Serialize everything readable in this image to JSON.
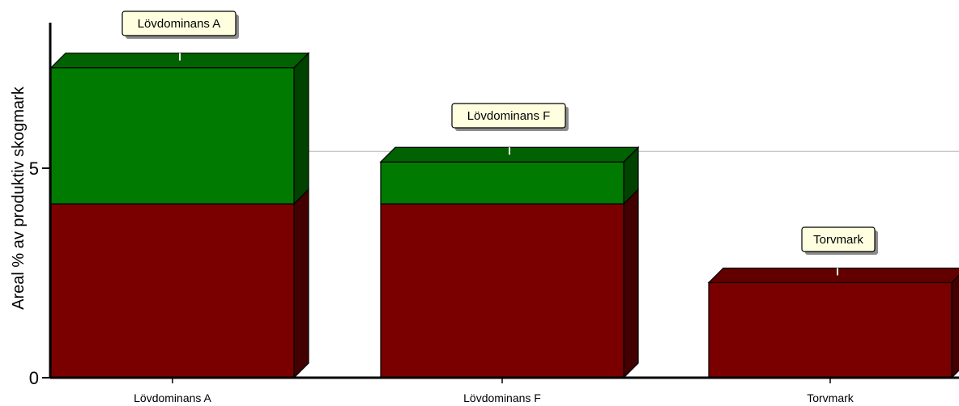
{
  "chart_data": {
    "type": "bar",
    "stacked": true,
    "style": "3d",
    "categories": [
      "Lövdominans A",
      "Lövdominans F",
      "Torvmark"
    ],
    "series": [
      {
        "values": [
          4.15,
          4.15,
          2.27
        ],
        "color": "#7a0000"
      },
      {
        "values": [
          3.25,
          1.0,
          0
        ],
        "color": "#007a00"
      }
    ],
    "totals": [
      7.4,
      5.15,
      2.27
    ],
    "callouts": [
      "Lövdominans A",
      "Lövdominans F",
      "Torvmark"
    ],
    "ylabel": "Areal % av produktiv skogmark",
    "yticks": [
      0,
      5
    ],
    "ylim": [
      0,
      8
    ],
    "reference_line": 5.4,
    "grid": false,
    "legend": "none",
    "colors": {
      "gridline": "#c8c8c8",
      "callout_fill": "#ffffe0"
    }
  }
}
